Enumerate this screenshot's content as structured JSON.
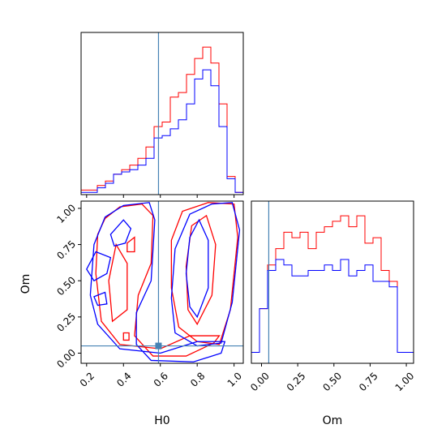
{
  "colors": {
    "series_a": "#ff0000",
    "series_b": "#0000ff",
    "truth": "#4682b4",
    "axes": "#000000"
  },
  "chart_data": [
    {
      "panel": "H0 marginal",
      "type": "histogram",
      "xlim": [
        0.17,
        1.05
      ],
      "x_parameter": "H0",
      "bin_edges": [
        0.17,
        0.214,
        0.258,
        0.302,
        0.346,
        0.39,
        0.434,
        0.478,
        0.522,
        0.566,
        0.61,
        0.654,
        0.698,
        0.742,
        0.786,
        0.83,
        0.874,
        0.918,
        0.962,
        1.006,
        1.05
      ],
      "series": [
        {
          "color": "red",
          "values": [
            2,
            2,
            4,
            6,
            9,
            11,
            13,
            16,
            21,
            30,
            32,
            43,
            45,
            53,
            60,
            65,
            58,
            40,
            8,
            1
          ]
        },
        {
          "color": "blue",
          "values": [
            1,
            1,
            3,
            5,
            9,
            10,
            11,
            13,
            16,
            25,
            26,
            29,
            33,
            40,
            51,
            55,
            48,
            30,
            7,
            1
          ]
        }
      ],
      "truth_x": 0.59,
      "grid": false,
      "y_ticks_shown": false
    },
    {
      "panel": "Om marginal",
      "type": "histogram",
      "xlim": [
        -0.07,
        1.05
      ],
      "xlabel": "Om",
      "x_ticks": [
        "0.00",
        "0.25",
        "0.50",
        "0.75",
        "1.00"
      ],
      "bin_edges": [
        -0.07,
        -0.014,
        0.042,
        0.098,
        0.154,
        0.21,
        0.266,
        0.322,
        0.378,
        0.434,
        0.49,
        0.546,
        0.602,
        0.658,
        0.714,
        0.77,
        0.826,
        0.882,
        0.938,
        0.994,
        1.05
      ],
      "series": [
        {
          "color": "red",
          "values": [
            2,
            10,
            18,
            21,
            24,
            23,
            24,
            21,
            24,
            25,
            26,
            27,
            25,
            27,
            22,
            23,
            17,
            15,
            2,
            2
          ]
        },
        {
          "color": "blue",
          "values": [
            2,
            10,
            17,
            19,
            18,
            16,
            16,
            17,
            17,
            18,
            17,
            19,
            16,
            17,
            18,
            15,
            15,
            14,
            2,
            2
          ]
        }
      ],
      "truth_x": 0.05,
      "grid": false,
      "y_ticks_shown": false
    },
    {
      "panel": "H0 vs Om joint",
      "type": "contour",
      "xlabel": "H0",
      "ylabel": "Om",
      "xlim": [
        0.17,
        1.05
      ],
      "ylim": [
        -0.07,
        1.05
      ],
      "x_ticks": [
        "0.2",
        "0.4",
        "0.6",
        "0.8",
        "1.0"
      ],
      "y_ticks": [
        "0.00",
        "0.25",
        "0.50",
        "0.75",
        "1.00"
      ],
      "series": [
        {
          "color": "red",
          "contours": [
            [
              [
                0.3,
                0.93
              ],
              [
                0.38,
                1.01
              ],
              [
                0.5,
                1.03
              ],
              [
                0.56,
                0.95
              ],
              [
                0.55,
                0.62
              ],
              [
                0.48,
                0.4
              ],
              [
                0.46,
                0.12
              ],
              [
                0.56,
                -0.02
              ],
              [
                0.74,
                -0.02
              ],
              [
                0.89,
                0.07
              ],
              [
                0.92,
                0.12
              ],
              [
                0.76,
                0.12
              ],
              [
                0.6,
                0.03
              ],
              [
                0.38,
                0.06
              ],
              [
                0.28,
                0.22
              ],
              [
                0.25,
                0.55
              ],
              [
                0.26,
                0.82
              ]
            ],
            [
              [
                0.92,
                0.06
              ],
              [
                0.98,
                0.3
              ],
              [
                1.02,
                0.8
              ],
              [
                1.0,
                1.03
              ],
              [
                0.86,
                1.04
              ],
              [
                0.72,
                0.98
              ],
              [
                0.66,
                0.78
              ],
              [
                0.66,
                0.45
              ],
              [
                0.7,
                0.18
              ],
              [
                0.8,
                0.08
              ]
            ],
            [
              [
                0.8,
                0.2
              ],
              [
                0.88,
                0.4
              ],
              [
                0.9,
                0.75
              ],
              [
                0.85,
                0.95
              ],
              [
                0.77,
                0.88
              ],
              [
                0.74,
                0.6
              ],
              [
                0.75,
                0.3
              ]
            ],
            [
              [
                0.34,
                0.22
              ],
              [
                0.42,
                0.3
              ],
              [
                0.42,
                0.62
              ],
              [
                0.36,
                0.75
              ],
              [
                0.32,
                0.5
              ]
            ],
            [
              [
                0.42,
                0.76
              ],
              [
                0.46,
                0.8
              ],
              [
                0.46,
                0.7
              ],
              [
                0.42,
                0.7
              ]
            ],
            [
              [
                0.4,
                0.14
              ],
              [
                0.43,
                0.14
              ],
              [
                0.43,
                0.09
              ],
              [
                0.4,
                0.09
              ]
            ]
          ]
        },
        {
          "color": "blue",
          "contours": [
            [
              [
                0.3,
                0.94
              ],
              [
                0.4,
                1.02
              ],
              [
                0.54,
                1.04
              ],
              [
                0.57,
                0.92
              ],
              [
                0.55,
                0.5
              ],
              [
                0.47,
                0.28
              ],
              [
                0.47,
                0.06
              ],
              [
                0.55,
                -0.05
              ],
              [
                0.78,
                -0.06
              ],
              [
                0.93,
                0.0
              ],
              [
                0.95,
                0.08
              ],
              [
                0.8,
                0.08
              ],
              [
                0.6,
                0.0
              ],
              [
                0.38,
                0.03
              ],
              [
                0.26,
                0.2
              ],
              [
                0.22,
                0.4
              ],
              [
                0.24,
                0.75
              ]
            ],
            [
              [
                0.93,
                0.07
              ],
              [
                0.99,
                0.35
              ],
              [
                1.03,
                0.85
              ],
              [
                0.99,
                1.04
              ],
              [
                0.88,
                1.03
              ],
              [
                0.76,
                0.96
              ],
              [
                0.68,
                0.72
              ],
              [
                0.66,
                0.38
              ],
              [
                0.68,
                0.14
              ],
              [
                0.8,
                0.05
              ]
            ],
            [
              [
                0.8,
                0.25
              ],
              [
                0.86,
                0.45
              ],
              [
                0.86,
                0.78
              ],
              [
                0.81,
                0.92
              ],
              [
                0.76,
                0.8
              ],
              [
                0.74,
                0.55
              ],
              [
                0.76,
                0.32
              ]
            ],
            [
              [
                0.2,
                0.58
              ],
              [
                0.25,
                0.7
              ],
              [
                0.33,
                0.66
              ],
              [
                0.31,
                0.55
              ],
              [
                0.24,
                0.5
              ]
            ],
            [
              [
                0.24,
                0.39
              ],
              [
                0.3,
                0.42
              ],
              [
                0.31,
                0.34
              ],
              [
                0.26,
                0.33
              ]
            ],
            [
              [
                0.33,
                0.82
              ],
              [
                0.4,
                0.92
              ],
              [
                0.44,
                0.86
              ],
              [
                0.41,
                0.76
              ],
              [
                0.35,
                0.74
              ]
            ]
          ]
        }
      ],
      "truth_point": [
        0.59,
        0.05
      ]
    }
  ]
}
